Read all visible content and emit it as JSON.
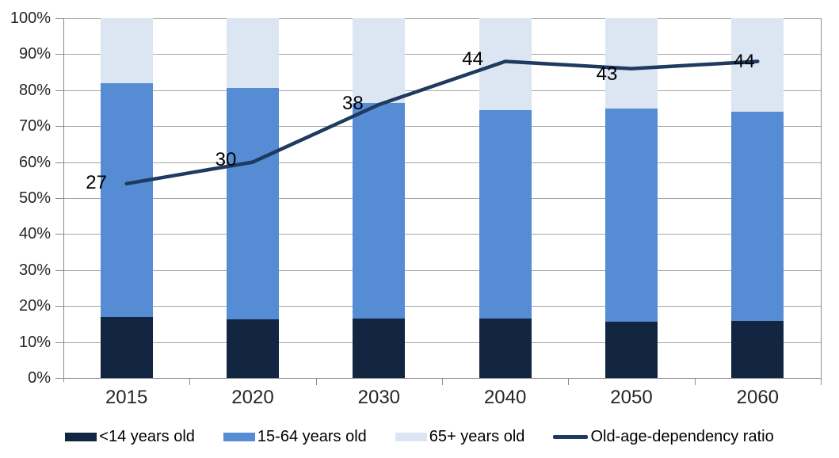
{
  "chart_data": {
    "type": "bar",
    "subtype": "stacked-bars-with-line-overlay",
    "title": "",
    "categories": [
      "2015",
      "2020",
      "2030",
      "2040",
      "2050",
      "2060"
    ],
    "stack_series": [
      {
        "name": "<14 years old",
        "color": "#122541",
        "values": [
          17.0,
          16.3,
          16.5,
          16.6,
          15.6,
          15.8
        ]
      },
      {
        "name": "15-64 years old",
        "color": "#558CD3",
        "values": [
          65.0,
          64.4,
          60.0,
          57.9,
          59.4,
          58.2
        ]
      },
      {
        "name": "65+ years old",
        "color": "#DCE5F2",
        "values": [
          18.0,
          19.3,
          23.5,
          25.5,
          25.0,
          26.0
        ]
      }
    ],
    "line_series": {
      "name": "Old-age-dependency ratio",
      "color": "#1F3A5F",
      "values": [
        27,
        30,
        38,
        44,
        43,
        44
      ],
      "labels": [
        "27",
        "30",
        "38",
        "44",
        "43",
        "44"
      ],
      "label_dx": [
        -38,
        -34,
        -33,
        -41,
        -31,
        -17
      ],
      "label_dy": [
        -1,
        -3,
        -1,
        -2,
        7,
        1
      ],
      "secondary_axis_multiplier": 2
    },
    "xlabel": "",
    "ylabel": "",
    "ylim": [
      0,
      100
    ],
    "yticks": [
      "0%",
      "10%",
      "20%",
      "30%",
      "40%",
      "50%",
      "60%",
      "70%",
      "80%",
      "90%",
      "100%"
    ],
    "grid": true,
    "legend_position": "bottom"
  },
  "legend": {
    "items": [
      {
        "label": "<14 years old",
        "swatch": "rect",
        "color": "#122541"
      },
      {
        "label": "15-64 years old",
        "swatch": "rect",
        "color": "#558CD3"
      },
      {
        "label": "65+ years old",
        "swatch": "rect",
        "color": "#DCE5F2"
      },
      {
        "label": "Old-age-dependency ratio",
        "swatch": "line",
        "color": "#1F3A5F"
      }
    ]
  },
  "colors": {
    "gridline": "#A6A6A6",
    "axis": "#8C8C8C",
    "axis_text": "#262626",
    "data_label_text": "#000000",
    "background": "#FFFFFF"
  }
}
